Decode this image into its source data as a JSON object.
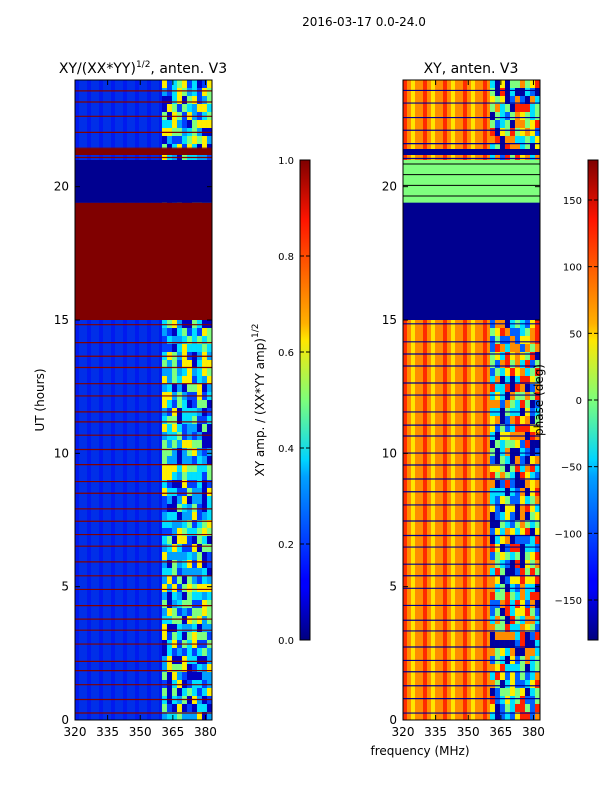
{
  "suptitle": "2016-03-17 0.0-24.0",
  "chart_data": [
    {
      "type": "heatmap",
      "title": "XY/(XX*YY)",
      "title_exponent": "1/2",
      "title_suffix": ", anten. V3",
      "ylabel": "UT (hours)",
      "xlabel": "",
      "xlim": [
        320,
        383
      ],
      "ylim": [
        0,
        24
      ],
      "xticks": [
        "320",
        "335",
        "350",
        "365",
        "380"
      ],
      "yticks": [
        "0",
        "5",
        "10",
        "15",
        "20"
      ],
      "colorbar": {
        "label": "XY amp. / (XX*YY amp)",
        "label_exponent": "1/2",
        "range": [
          0.0,
          1.0
        ],
        "ticks": [
          "0.0",
          "0.2",
          "0.4",
          "0.6",
          "0.8",
          "1.0"
        ],
        "colormap": "jet"
      },
      "bands": [
        {
          "start": 0,
          "end": 15,
          "description": "low amplitude, higher values above 360 MHz"
        },
        {
          "start": 15,
          "end": 19.4,
          "value": 1.0
        },
        {
          "start": 19.4,
          "end": 21,
          "value": 0.0
        },
        {
          "start": 21,
          "end": 24,
          "description": "low amplitude, higher values above 360 MHz"
        }
      ]
    },
    {
      "type": "heatmap",
      "title": "XY, anten. V3",
      "xlabel": "frequency (MHz)",
      "ylabel": "",
      "xlim": [
        320,
        383
      ],
      "ylim": [
        0,
        24
      ],
      "xticks": [
        "320",
        "335",
        "350",
        "365",
        "380"
      ],
      "yticks": [
        "0",
        "5",
        "10",
        "15",
        "20"
      ],
      "colorbar": {
        "label": "phase (deg)",
        "range": [
          -180,
          180
        ],
        "ticks": [
          "−150",
          "−100",
          "−50",
          "0",
          "50",
          "100",
          "150"
        ],
        "colormap": "jet"
      },
      "bands": [
        {
          "start": 0,
          "end": 15,
          "description": "phase striped orange/red below 360 MHz, mixed above"
        },
        {
          "start": 15,
          "end": 19.4,
          "value": -180
        },
        {
          "start": 19.4,
          "end": 21,
          "value": 0
        },
        {
          "start": 21,
          "end": 24,
          "description": "phase striped orange/red below 360 MHz, mixed above"
        }
      ]
    }
  ],
  "colors": {
    "dark_red": "#800000",
    "dark_blue": "#000090",
    "blue": "#0000ff",
    "mid_blue": "#0030e8",
    "light_green": "#7fff7f",
    "orange": "#ff8c00",
    "red": "#ff2000",
    "yellow": "#ffee00",
    "cyan": "#00e0ff"
  }
}
